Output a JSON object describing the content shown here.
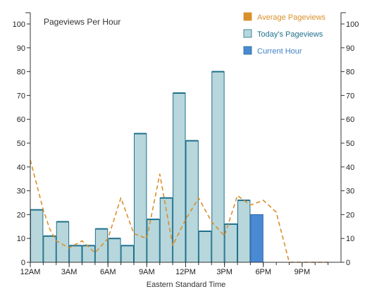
{
  "chart_data": {
    "type": "bar",
    "title": "Pageviews Per Hour",
    "xlabel": "Eastern Standard Time",
    "ylabel": "",
    "ylim": [
      0,
      100
    ],
    "yticks": [
      0,
      10,
      20,
      30,
      40,
      50,
      60,
      70,
      80,
      90,
      100
    ],
    "x_tick_labels": [
      {
        "hour": 0,
        "label": "12AM"
      },
      {
        "hour": 3,
        "label": "3AM"
      },
      {
        "hour": 6,
        "label": "6AM"
      },
      {
        "hour": 9,
        "label": "9AM"
      },
      {
        "hour": 12,
        "label": "12PM"
      },
      {
        "hour": 15,
        "label": "3PM"
      },
      {
        "hour": 18,
        "label": "6PM"
      },
      {
        "hour": 21,
        "label": "9PM"
      }
    ],
    "legend": [
      {
        "label": "Average Pageviews",
        "color": "#d9902a",
        "text_color": "#d9902a",
        "marker": "square"
      },
      {
        "label": "Today's Pageviews",
        "color": "#b7d7dc",
        "text_color": "#1f6f8b",
        "marker": "square"
      },
      {
        "label": "Current Hour",
        "color": "#4a8ad4",
        "text_color": "#3f7fc7",
        "marker": "square"
      }
    ],
    "legend_position": "top-right",
    "grid": false,
    "today_pageviews": [
      22,
      11,
      17,
      7,
      7,
      14,
      10,
      7,
      54,
      18,
      27,
      71,
      51,
      13,
      80,
      16,
      26
    ],
    "current_hour": {
      "hour": 17,
      "value": 20
    },
    "average_pageviews": [
      [
        0,
        43
      ],
      [
        1,
        22
      ],
      [
        1.5,
        14
      ],
      [
        2,
        9
      ],
      [
        3,
        6
      ],
      [
        4,
        9
      ],
      [
        5,
        4
      ],
      [
        6,
        10
      ],
      [
        7,
        27
      ],
      [
        8,
        12
      ],
      [
        9,
        10
      ],
      [
        10,
        37
      ],
      [
        11,
        7
      ],
      [
        12,
        18
      ],
      [
        13,
        27
      ],
      [
        14,
        17
      ],
      [
        15,
        11
      ],
      [
        16,
        28
      ],
      [
        17,
        24
      ],
      [
        18,
        26
      ],
      [
        19,
        21
      ],
      [
        20,
        0
      ],
      [
        21,
        0
      ],
      [
        22,
        0
      ],
      [
        23,
        0
      ]
    ],
    "colors": {
      "bar_fill": "#b7d7dc",
      "bar_stroke": "#1f6f8b",
      "current_fill": "#4a8ad4",
      "current_stroke": "#2a5fa8",
      "average_line": "#d9902a",
      "axis": "#333333"
    }
  }
}
